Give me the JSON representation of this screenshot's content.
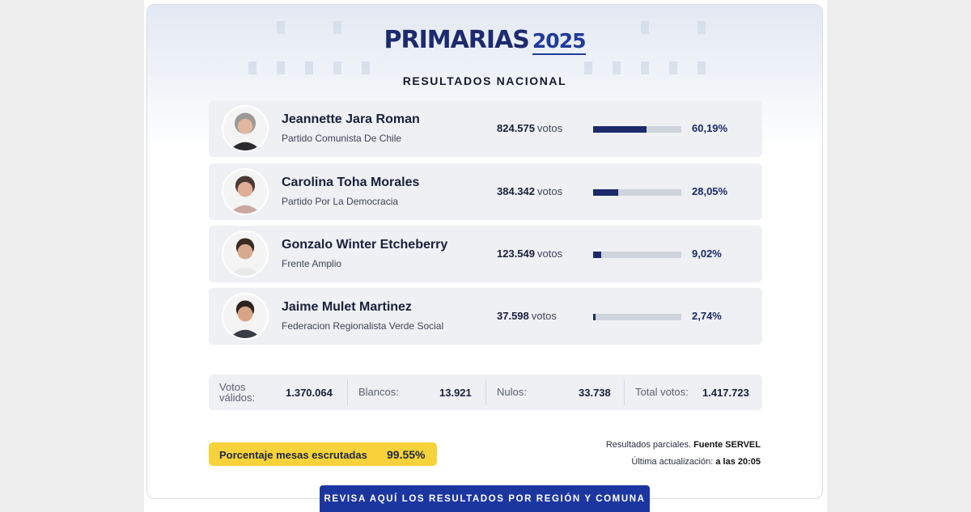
{
  "header": {
    "brand_word": "PRIMARIAS",
    "brand_year": "2025",
    "subtitle": "RESULTADOS NACIONAL"
  },
  "colors": {
    "accent": "#1b2a6b",
    "bar_track": "#cfd3dc",
    "highlight": "#f7d23a",
    "cta": "#1c36a0"
  },
  "candidates": [
    {
      "name": "Jeannette Jara Roman",
      "party": "Partido Comunista De Chile",
      "votes": "824.575",
      "votes_unit": "votos",
      "percent": "60,19%",
      "share": 0.6019
    },
    {
      "name": "Carolina Toha Morales",
      "party": "Partido Por La Democracia",
      "votes": "384.342",
      "votes_unit": "votos",
      "percent": "28,05%",
      "share": 0.2805
    },
    {
      "name": "Gonzalo Winter Etcheberry",
      "party": "Frente Amplio",
      "votes": "123.549",
      "votes_unit": "votos",
      "percent": "9,02%",
      "share": 0.0902
    },
    {
      "name": "Jaime Mulet Martinez",
      "party": "Federacion Regionalista Verde Social",
      "votes": "37.598",
      "votes_unit": "votos",
      "percent": "2,74%",
      "share": 0.0274
    }
  ],
  "totals": {
    "validos_label_1": "Votos",
    "validos_label_2": "válidos:",
    "validos": "1.370.064",
    "blancos_label": "Blancos:",
    "blancos": "13.921",
    "nulos_label": "Nulos:",
    "nulos": "33.738",
    "total_label": "Total votos:",
    "total": "1.417.723"
  },
  "mesas": {
    "label": "Porcentaje mesas escrutadas",
    "value": "99.55%"
  },
  "source": {
    "line1_text": "Resultados parciales.",
    "line1_bold": "Fuente SERVEL",
    "line2_text": "Última actualización:",
    "line2_bold": "a las 20:05"
  },
  "cta": {
    "label": "REVISA AQUÍ LOS RESULTADOS POR REGIÓN Y COMUNA"
  }
}
